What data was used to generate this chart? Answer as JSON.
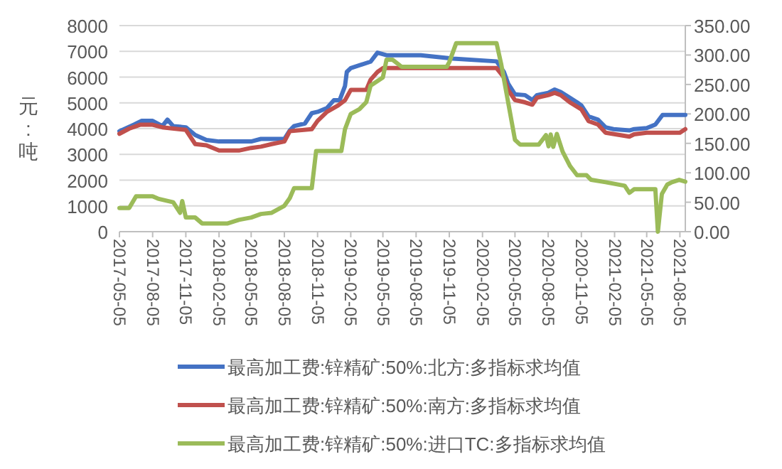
{
  "chart_data": {
    "type": "line",
    "ylabel": "元:吨",
    "legend": "bottom",
    "grid": "y",
    "xlim": [
      "2017-05-05",
      "2021-08-20"
    ],
    "xticks": [
      "2017-05-05",
      "2017-08-05",
      "2017-11-05",
      "2018-02-05",
      "2018-05-05",
      "2018-08-05",
      "2018-11-05",
      "2019-02-05",
      "2019-05-05",
      "2019-08-05",
      "2019-11-05",
      "2020-02-05",
      "2020-05-05",
      "2020-08-05",
      "2020-11-05",
      "2021-02-05",
      "2021-05-05",
      "2021-08-05"
    ],
    "ylim": [
      0,
      8000
    ],
    "yticks": [
      0,
      1000,
      2000,
      3000,
      4000,
      5000,
      6000,
      7000,
      8000
    ],
    "y2lim": [
      0,
      350
    ],
    "y2ticks": [
      {
        "value": 0,
        "label": "0.00"
      },
      {
        "value": 50,
        "label": "50.00"
      },
      {
        "value": 100,
        "label": "100.00"
      },
      {
        "value": 150,
        "label": "150.00"
      },
      {
        "value": 200,
        "label": "200.00"
      },
      {
        "value": 250,
        "label": "250.00"
      },
      {
        "value": 300,
        "label": "300.00"
      },
      {
        "value": 350,
        "label": "350.00"
      }
    ],
    "series": [
      {
        "name": "最高加工费:锌精矿:50%:北方:多指标求均值",
        "color": "#4472c4",
        "x": [
          "2017-05-05",
          "2017-06-15",
          "2017-07-05",
          "2017-08-05",
          "2017-09-01",
          "2017-09-15",
          "2017-10-01",
          "2017-11-05",
          "2017-12-01",
          "2018-01-01",
          "2018-02-05",
          "2018-05-05",
          "2018-06-01",
          "2018-08-05",
          "2018-08-20",
          "2018-09-01",
          "2018-10-01",
          "2018-10-20",
          "2018-11-05",
          "2018-12-01",
          "2018-12-20",
          "2019-01-05",
          "2019-01-20",
          "2019-01-25",
          "2019-02-05",
          "2019-04-01",
          "2019-04-20",
          "2019-05-15",
          "2019-08-18",
          "2019-11-16",
          "2020-03-15",
          "2020-04-04",
          "2020-04-16",
          "2020-05-05",
          "2020-06-02",
          "2020-06-22",
          "2020-07-05",
          "2020-08-05",
          "2020-08-23",
          "2020-09-09",
          "2020-10-04",
          "2020-10-24",
          "2020-11-05",
          "2020-11-25",
          "2020-12-21",
          "2021-01-11",
          "2021-02-02",
          "2021-03-18",
          "2021-03-31",
          "2021-05-05",
          "2021-05-29",
          "2021-06-18",
          "2021-08-20"
        ],
        "values": [
          3900,
          4160,
          4300,
          4300,
          4100,
          4350,
          4100,
          4050,
          3750,
          3560,
          3500,
          3500,
          3600,
          3600,
          3930,
          4100,
          4200,
          4600,
          4650,
          4800,
          5100,
          5100,
          5650,
          6200,
          6350,
          6600,
          6950,
          6850,
          6850,
          6720,
          6610,
          6210,
          5750,
          5330,
          5300,
          5110,
          5300,
          5390,
          5520,
          5420,
          5200,
          5020,
          4900,
          4470,
          4350,
          4050,
          3980,
          3930,
          3980,
          4020,
          4160,
          4530,
          4530
        ]
      },
      {
        "name": "最高加工费:锌精矿:50%:南方:多指标求均值",
        "color": "#c0504d",
        "x": [
          "2017-05-05",
          "2017-06-01",
          "2017-07-01",
          "2017-08-05",
          "2017-09-01",
          "2017-11-05",
          "2017-12-01",
          "2018-01-01",
          "2018-02-05",
          "2018-04-01",
          "2018-05-05",
          "2018-06-01",
          "2018-07-01",
          "2018-08-05",
          "2018-08-20",
          "2018-10-20",
          "2018-11-05",
          "2018-12-01",
          "2019-01-01",
          "2019-01-20",
          "2019-02-05",
          "2019-03-20",
          "2019-04-01",
          "2019-04-20",
          "2019-05-05",
          "2020-03-15",
          "2020-04-04",
          "2020-04-16",
          "2020-05-05",
          "2020-06-02",
          "2020-06-22",
          "2020-07-05",
          "2020-08-05",
          "2020-08-23",
          "2020-09-09",
          "2020-10-04",
          "2020-11-05",
          "2020-11-25",
          "2020-12-21",
          "2021-01-11",
          "2021-03-18",
          "2021-03-31",
          "2021-05-05",
          "2021-08-05",
          "2021-08-20"
        ],
        "values": [
          3800,
          4000,
          4150,
          4150,
          4050,
          3950,
          3400,
          3350,
          3150,
          3150,
          3250,
          3300,
          3400,
          3500,
          3900,
          3980,
          4300,
          4650,
          4900,
          5100,
          5500,
          5500,
          5900,
          6200,
          6350,
          6350,
          6000,
          5500,
          5110,
          5020,
          4930,
          5200,
          5300,
          5390,
          5300,
          5020,
          4750,
          4290,
          4160,
          3840,
          3690,
          3780,
          3840,
          3840,
          3980
        ]
      },
      {
        "name": "最高加工费:锌精矿:50%:进口TC:多指标求均值",
        "color": "#9bbb59",
        "axis": "y2",
        "x": [
          "2017-05-05",
          "2017-06-01",
          "2017-06-20",
          "2017-08-05",
          "2017-08-20",
          "2017-10-01",
          "2017-10-20",
          "2017-10-26",
          "2017-11-05",
          "2017-12-01",
          "2017-12-20",
          "2018-03-01",
          "2018-04-01",
          "2018-05-05",
          "2018-06-01",
          "2018-07-01",
          "2018-08-05",
          "2018-08-20",
          "2018-09-01",
          "2018-10-20",
          "2018-11-01",
          "2019-01-10",
          "2019-01-20",
          "2019-02-05",
          "2019-03-01",
          "2019-03-20",
          "2019-04-01",
          "2019-05-05",
          "2019-05-15",
          "2019-06-01",
          "2019-06-26",
          "2019-10-29",
          "2019-11-05",
          "2019-11-24",
          "2020-03-15",
          "2020-03-28",
          "2020-04-16",
          "2020-05-05",
          "2020-05-19",
          "2020-07-10",
          "2020-07-30",
          "2020-08-06",
          "2020-08-12",
          "2020-08-19",
          "2020-08-29",
          "2020-09-14",
          "2020-10-04",
          "2020-10-24",
          "2020-11-19",
          "2020-12-02",
          "2021-01-11",
          "2021-03-05",
          "2021-03-18",
          "2021-03-31",
          "2021-05-29",
          "2021-06-05",
          "2021-06-16",
          "2021-07-01",
          "2021-07-14",
          "2021-08-03",
          "2021-08-20"
        ],
        "values": [
          40,
          40,
          60,
          60,
          56,
          50,
          32,
          52,
          24,
          24,
          14,
          14,
          20,
          24,
          30,
          32,
          44,
          57,
          74,
          74,
          137,
          137,
          174,
          200,
          208,
          220,
          248,
          262,
          292,
          292,
          280,
          280,
          288,
          320,
          320,
          284,
          220,
          156,
          148,
          148,
          164,
          145,
          165,
          144,
          166,
          136,
          112,
          96,
          96,
          88,
          84,
          78,
          66,
          72,
          72,
          0,
          64,
          80,
          84,
          88,
          85
        ]
      }
    ]
  }
}
